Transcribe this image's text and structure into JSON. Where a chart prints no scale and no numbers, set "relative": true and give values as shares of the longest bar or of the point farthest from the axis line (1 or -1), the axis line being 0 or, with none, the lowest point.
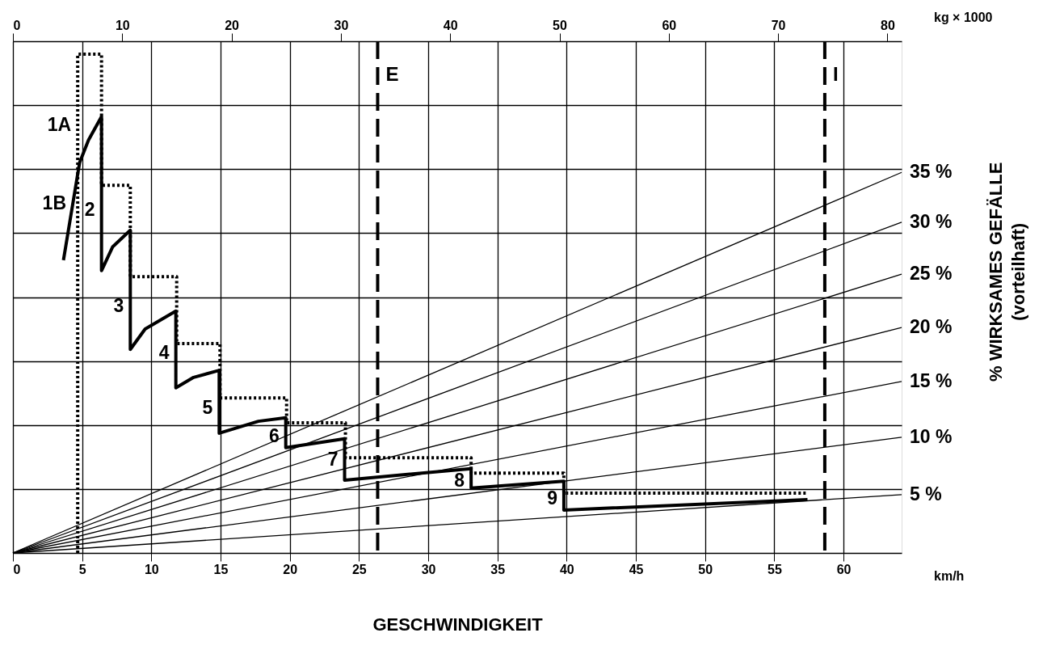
{
  "chart_data": {
    "type": "line",
    "relative": true,
    "xlabel": "GESCHWINDIGKEIT",
    "x2label": "kg × 1000",
    "y2label": "% WIRKSAMES GEFÄLLE\n(vorteilhaft)",
    "xlim": [
      0,
      64.2
    ],
    "xticks": [
      0,
      5,
      10,
      15,
      20,
      25,
      30,
      35,
      40,
      45,
      50,
      55,
      60
    ],
    "x2lim": [
      0,
      81.3
    ],
    "x2ticks": [
      0,
      10,
      20,
      30,
      40,
      50,
      60,
      70,
      80
    ],
    "grid": true,
    "legend": false,
    "tick_labels": "x",
    "marker": "none",
    "series": [
      {
        "color": "#000000",
        "line_style": "solid",
        "x": [
          3.65,
          4.82,
          5.46,
          6.4,
          6.4,
          7.21,
          8.48,
          8.48,
          9.55,
          11.77,
          11.77,
          13.05,
          14.9,
          14.9,
          17.73,
          19.71,
          19.71,
          23.96,
          23.96,
          33.1,
          33.1,
          39.8,
          39.8,
          57.4
        ],
        "values": [
          0.587,
          0.783,
          0.828,
          0.875,
          0.566,
          0.614,
          0.647,
          0.408,
          0.449,
          0.485,
          0.331,
          0.352,
          0.366,
          0.24,
          0.264,
          0.271,
          0.211,
          0.229,
          0.146,
          0.169,
          0.13,
          0.144,
          0.086,
          0.107
        ]
      },
      {
        "color": "#000000",
        "line_style": "dotted",
        "x": [
          4.68,
          4.68,
          6.4,
          6.4,
          8.48,
          8.48,
          11.83,
          11.83,
          14.96,
          14.96,
          19.77,
          19.77,
          24.02,
          24.02,
          33.1,
          33.1,
          39.8,
          39.8,
          57.4
        ],
        "values": [
          0,
          1,
          1,
          0.737,
          0.737,
          0.554,
          0.554,
          0.42,
          0.42,
          0.311,
          0.311,
          0.261,
          0.261,
          0.191,
          0.191,
          0.16,
          0.16,
          0.12,
          0.12
        ]
      },
      {
        "name": "35 %",
        "color": "#000000",
        "line_style": "solid",
        "x": [
          0,
          64.2
        ],
        "values": [
          0,
          0.763
        ]
      },
      {
        "name": "30 %",
        "color": "#000000",
        "line_style": "solid",
        "x": [
          0,
          64.2
        ],
        "values": [
          0,
          0.663
        ]
      },
      {
        "name": "25 %",
        "color": "#000000",
        "line_style": "solid",
        "x": [
          0,
          64.2
        ],
        "values": [
          0,
          0.559
        ]
      },
      {
        "name": "20 %",
        "color": "#000000",
        "line_style": "solid",
        "x": [
          0,
          64.2
        ],
        "values": [
          0,
          0.452
        ]
      },
      {
        "name": "15 %",
        "color": "#000000",
        "line_style": "solid",
        "x": [
          0,
          64.2
        ],
        "values": [
          0,
          0.344
        ]
      },
      {
        "name": "10 %",
        "color": "#000000",
        "line_style": "solid",
        "x": [
          0,
          64.2
        ],
        "values": [
          0,
          0.232
        ]
      },
      {
        "name": "5 %",
        "color": "#000000",
        "line_style": "solid",
        "x": [
          0,
          64.2
        ],
        "values": [
          0,
          0.117
        ]
      }
    ],
    "ref_lines": [
      {
        "axis": "x",
        "value": 26.35,
        "label": "E",
        "color": "#000000",
        "line_style": "dashed"
      },
      {
        "axis": "x",
        "value": 58.65,
        "label": "I",
        "color": "#000000",
        "line_style": "dashed"
      }
    ],
    "annotations": [
      {
        "text": "1A",
        "x": 4.68,
        "y": 0.857
      },
      {
        "text": "1B",
        "x": 4.32,
        "y": 0.7
      },
      {
        "text": "2",
        "x": 6.4,
        "y": 0.687
      },
      {
        "text": "3",
        "x": 8.48,
        "y": 0.494
      },
      {
        "text": "4",
        "x": 11.77,
        "y": 0.4
      },
      {
        "text": "5",
        "x": 14.9,
        "y": 0.29
      },
      {
        "text": "6",
        "x": 19.71,
        "y": 0.233
      },
      {
        "text": "7",
        "x": 23.96,
        "y": 0.186
      },
      {
        "text": "8",
        "x": 33.1,
        "y": 0.145
      },
      {
        "text": "9",
        "x": 39.8,
        "y": 0.109
      },
      "km/h"
    ]
  }
}
